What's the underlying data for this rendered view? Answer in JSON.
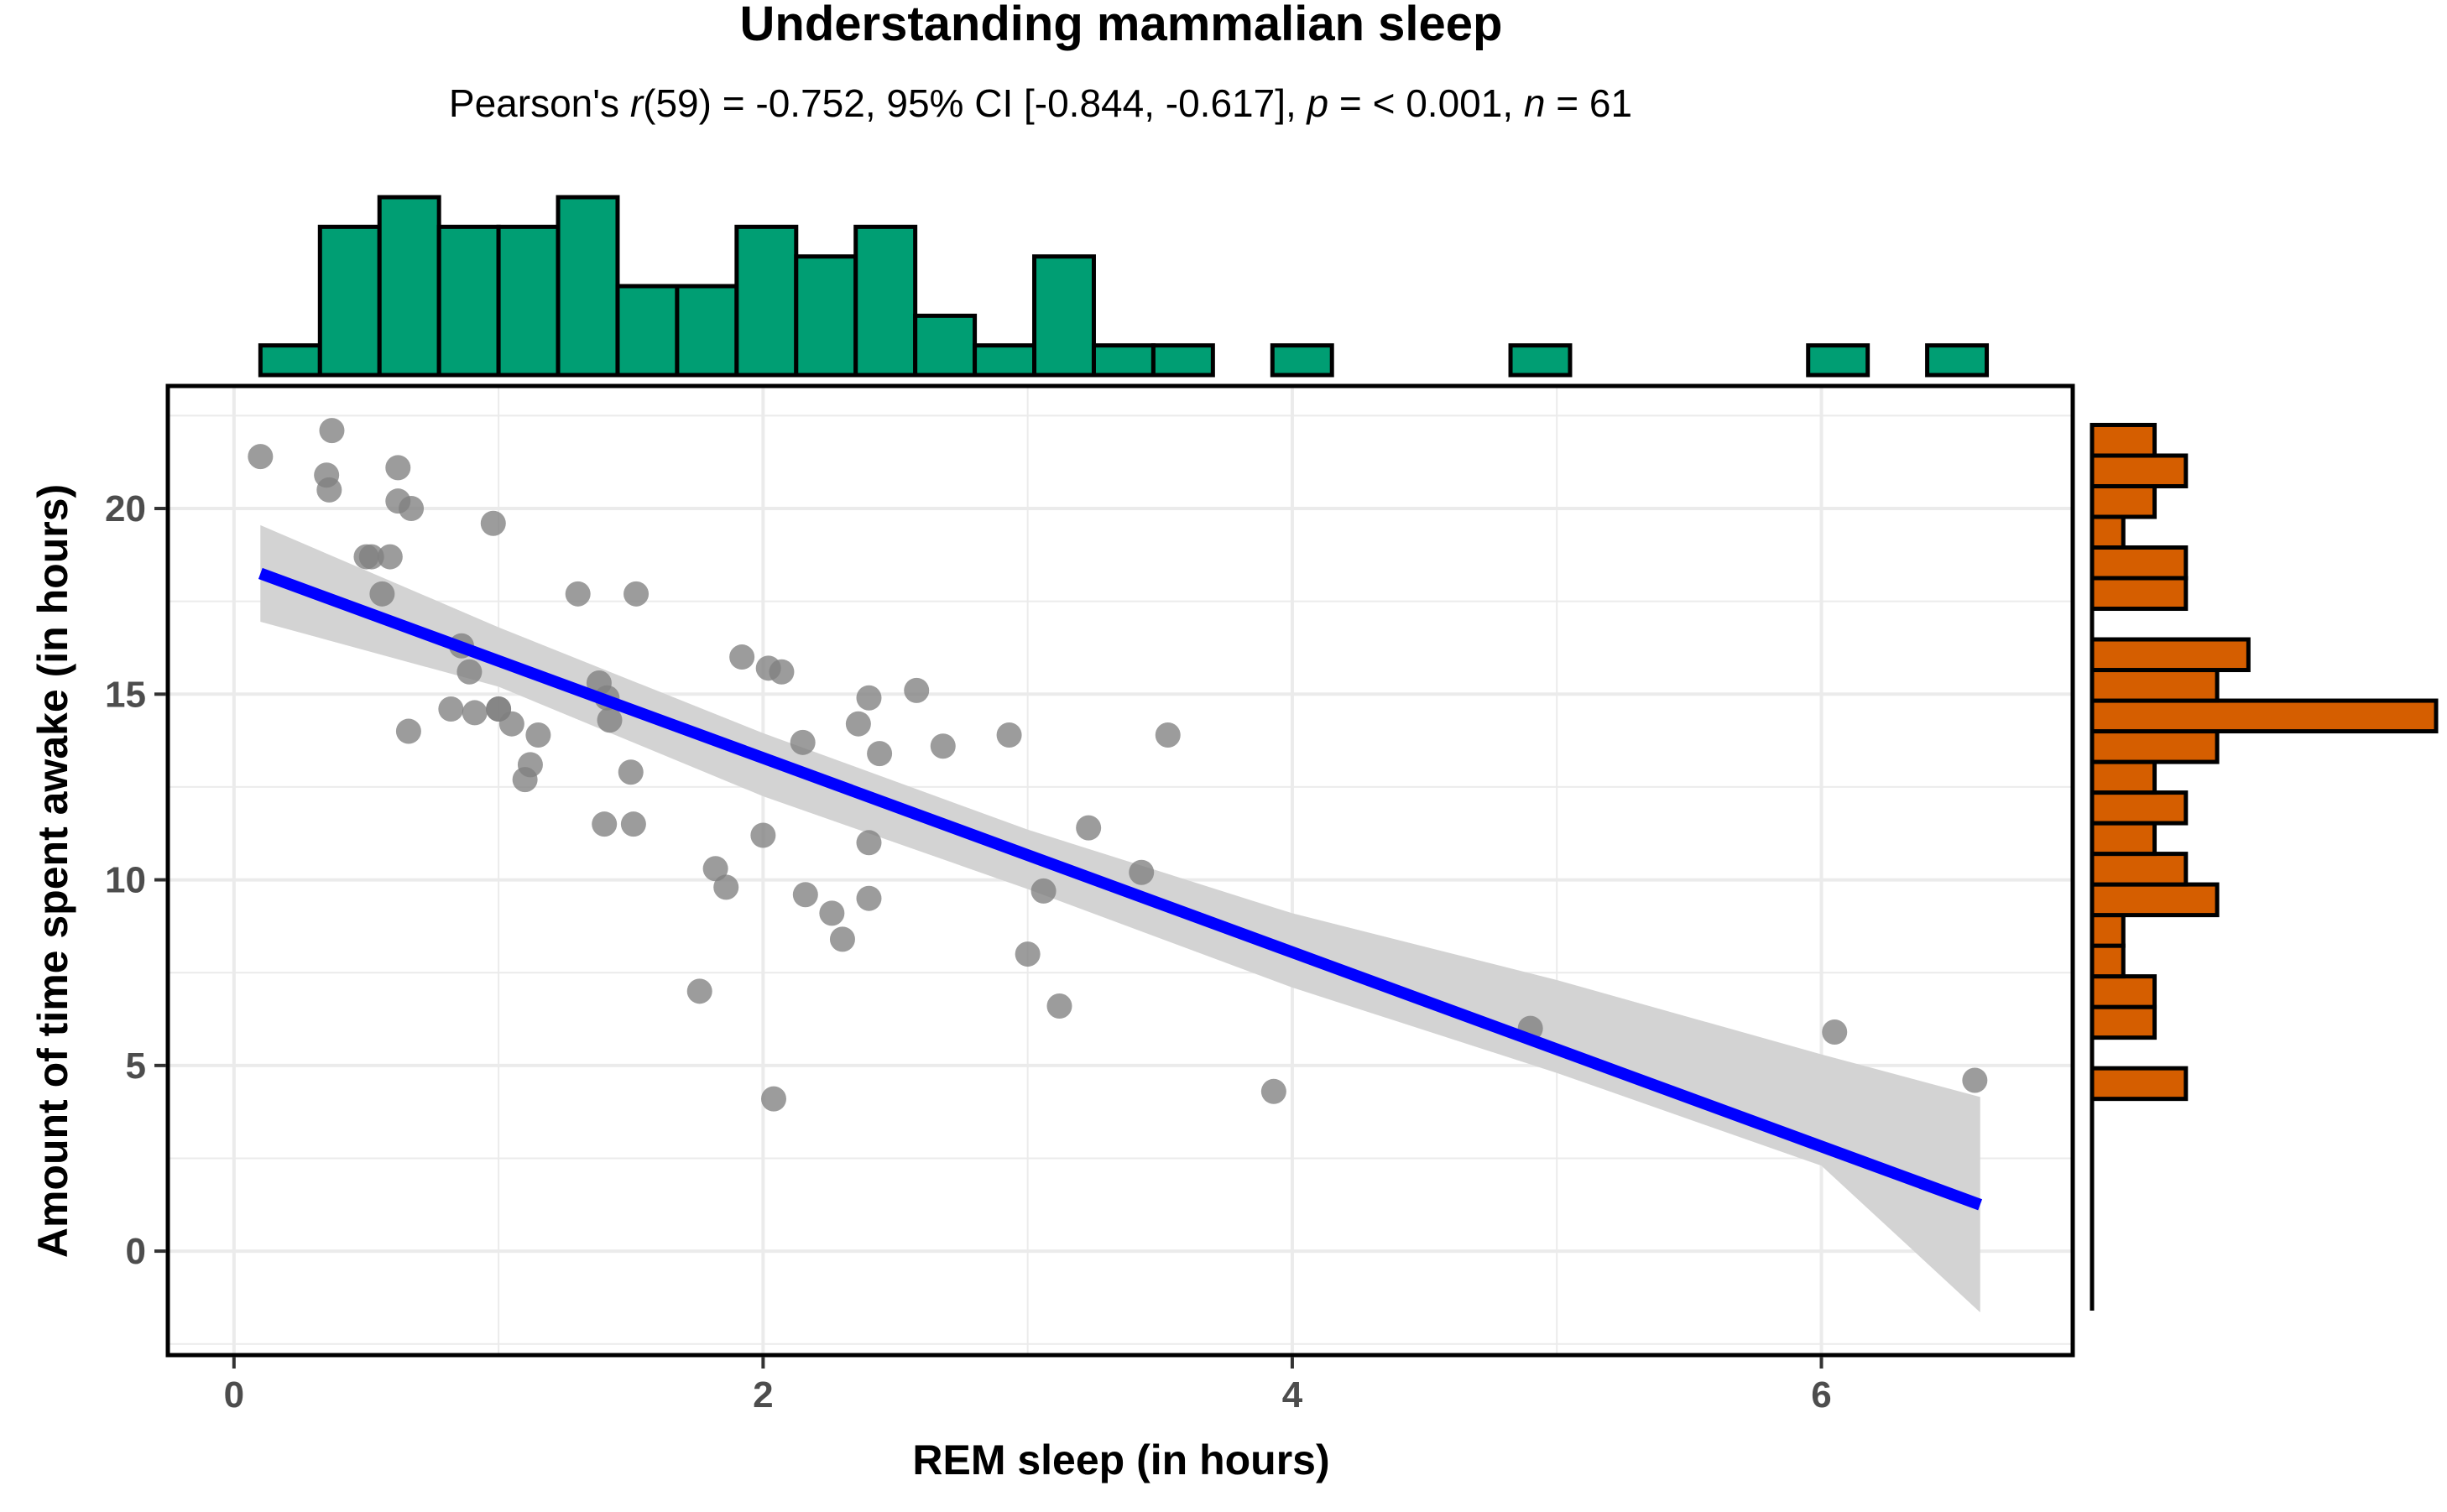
{
  "chart_data": {
    "type": "scatter",
    "title": "Understanding mammalian sleep",
    "subtitle": {
      "prefix": "Pearson's ",
      "r_symbol": "r",
      "r_part": "(59) = -0.752, 95% CI [-0.844, -0.617], ",
      "p_symbol": "p",
      "p_part": " = < 0.001, ",
      "n_symbol": "n",
      "n_part": " = 61"
    },
    "xlabel": "REM sleep (in hours)",
    "ylabel": "Amount of time spent awake (in hours)",
    "xlim": [
      -0.25,
      6.95
    ],
    "ylim": [
      -2.8,
      23.3
    ],
    "xticks": [
      0,
      2,
      4,
      6
    ],
    "yticks": [
      0,
      5,
      10,
      15,
      20
    ],
    "xtick_labels": [
      "0",
      "2",
      "4",
      "6"
    ],
    "ytick_labels": [
      "0",
      "5",
      "10",
      "15",
      "20"
    ],
    "grid": true,
    "points": [
      {
        "x": 0.1,
        "y": 21.4
      },
      {
        "x": 0.35,
        "y": 20.9
      },
      {
        "x": 0.36,
        "y": 20.5
      },
      {
        "x": 0.37,
        "y": 22.1
      },
      {
        "x": 0.5,
        "y": 18.7
      },
      {
        "x": 0.52,
        "y": 18.7
      },
      {
        "x": 0.56,
        "y": 17.7
      },
      {
        "x": 0.59,
        "y": 18.7
      },
      {
        "x": 0.62,
        "y": 21.1
      },
      {
        "x": 0.62,
        "y": 20.2
      },
      {
        "x": 0.66,
        "y": 14.0
      },
      {
        "x": 0.67,
        "y": 20.0
      },
      {
        "x": 0.82,
        "y": 14.6
      },
      {
        "x": 0.86,
        "y": 16.3
      },
      {
        "x": 0.89,
        "y": 15.6
      },
      {
        "x": 0.91,
        "y": 14.5
      },
      {
        "x": 0.98,
        "y": 19.6
      },
      {
        "x": 1.0,
        "y": 14.6
      },
      {
        "x": 1.05,
        "y": 14.2
      },
      {
        "x": 1.1,
        "y": 12.7
      },
      {
        "x": 1.12,
        "y": 13.1
      },
      {
        "x": 1.15,
        "y": 13.9
      },
      {
        "x": 1.3,
        "y": 17.7
      },
      {
        "x": 1.38,
        "y": 15.3
      },
      {
        "x": 1.4,
        "y": 11.5
      },
      {
        "x": 1.41,
        "y": 14.9
      },
      {
        "x": 1.42,
        "y": 14.3
      },
      {
        "x": 1.5,
        "y": 12.9
      },
      {
        "x": 1.51,
        "y": 11.5
      },
      {
        "x": 1.52,
        "y": 17.7
      },
      {
        "x": 1.76,
        "y": 7.0
      },
      {
        "x": 1.82,
        "y": 10.3
      },
      {
        "x": 1.86,
        "y": 9.8
      },
      {
        "x": 1.92,
        "y": 16.0
      },
      {
        "x": 2.0,
        "y": 11.2
      },
      {
        "x": 2.02,
        "y": 15.7
      },
      {
        "x": 2.04,
        "y": 4.1
      },
      {
        "x": 2.07,
        "y": 15.6
      },
      {
        "x": 2.15,
        "y": 13.7
      },
      {
        "x": 2.16,
        "y": 9.6
      },
      {
        "x": 2.26,
        "y": 9.1
      },
      {
        "x": 2.3,
        "y": 8.4
      },
      {
        "x": 2.36,
        "y": 14.2
      },
      {
        "x": 2.4,
        "y": 14.9
      },
      {
        "x": 2.4,
        "y": 11.0
      },
      {
        "x": 2.4,
        "y": 9.5
      },
      {
        "x": 2.44,
        "y": 13.4
      },
      {
        "x": 2.58,
        "y": 15.1
      },
      {
        "x": 2.68,
        "y": 13.6
      },
      {
        "x": 2.93,
        "y": 13.9
      },
      {
        "x": 3.0,
        "y": 8.0
      },
      {
        "x": 3.06,
        "y": 9.7
      },
      {
        "x": 3.12,
        "y": 6.6
      },
      {
        "x": 3.23,
        "y": 11.4
      },
      {
        "x": 3.43,
        "y": 10.2
      },
      {
        "x": 3.53,
        "y": 13.9
      },
      {
        "x": 3.93,
        "y": 4.3
      },
      {
        "x": 4.9,
        "y": 6.0
      },
      {
        "x": 6.05,
        "y": 5.9
      },
      {
        "x": 6.58,
        "y": 4.6
      },
      {
        "x": 1.0,
        "y": 14.6
      }
    ],
    "fit_line": {
      "x": [
        0.1,
        6.6
      ],
      "y": [
        18.25,
        1.25
      ]
    },
    "confidence_band": {
      "x": [
        0.1,
        1.0,
        2.0,
        3.0,
        4.0,
        5.0,
        6.0,
        6.6
      ],
      "upper": [
        19.55,
        16.8,
        13.95,
        11.35,
        9.1,
        7.3,
        5.3,
        4.15
      ],
      "lower": [
        16.95,
        15.2,
        12.25,
        9.75,
        7.1,
        4.8,
        2.3,
        -1.65
      ]
    },
    "top_histogram": {
      "bin_edges": [
        0.1,
        0.325,
        0.55,
        0.775,
        1.0,
        1.225,
        1.45,
        1.675,
        1.9,
        2.125,
        2.35,
        2.575,
        2.8,
        3.025,
        3.25,
        3.475,
        3.7,
        3.925,
        4.15,
        4.375,
        4.6,
        4.825,
        5.05,
        5.275,
        5.5,
        5.725,
        5.95,
        6.175,
        6.4,
        6.625
      ],
      "counts": [
        1,
        5,
        6,
        5,
        5,
        6,
        3,
        3,
        5,
        4,
        5,
        2,
        1,
        4,
        1,
        1,
        0,
        1,
        0,
        0,
        0,
        1,
        0,
        0,
        0,
        0,
        1,
        0,
        1
      ],
      "fill": "#009E73"
    },
    "right_histogram": {
      "bin_edges": [
        4.1,
        4.925,
        5.75,
        6.575,
        7.4,
        8.225,
        9.05,
        9.875,
        10.7,
        11.525,
        12.35,
        13.175,
        14.0,
        14.825,
        15.65,
        16.475,
        17.3,
        18.125,
        18.95,
        19.775,
        20.6,
        21.425,
        22.25
      ],
      "counts": [
        3,
        0,
        2,
        2,
        1,
        1,
        4,
        3,
        2,
        3,
        2,
        4,
        11,
        4,
        5,
        0,
        3,
        3,
        1,
        2,
        3,
        2
      ],
      "fill": "#D55E00"
    },
    "colors": {
      "point": "#808080",
      "fit_line": "#0000FF",
      "band": "#d3d3d3",
      "grid": "#ebebeb",
      "panel_border": "#000000"
    }
  }
}
